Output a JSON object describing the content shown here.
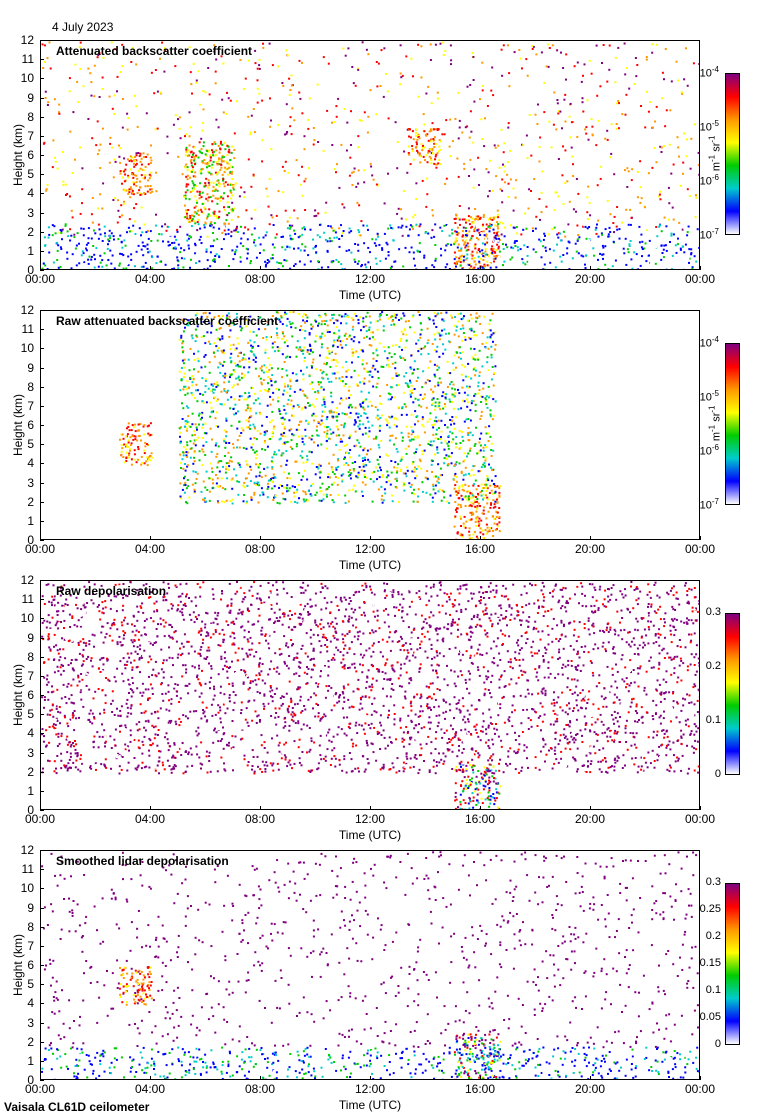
{
  "header": {
    "date": "4 July 2023"
  },
  "footer": {
    "instrument": "Vaisala CL61D ceilometer"
  },
  "colors": {
    "red": "#ff0000",
    "orange": "#ff9900",
    "yellow": "#ffff00",
    "green": "#00cc00",
    "cyan": "#00cccc",
    "blue": "#0000ff",
    "purple": "#800080",
    "white": "#ffffff"
  },
  "chart_data": [
    {
      "type": "heatmap",
      "title": "Attenuated backscatter coefficient",
      "xlabel": "Time (UTC)",
      "ylabel": "Height (km)",
      "xticks": [
        "00:00",
        "04:00",
        "08:00",
        "12:00",
        "16:00",
        "20:00",
        "00:00"
      ],
      "yticks": [
        "0",
        "1",
        "2",
        "3",
        "4",
        "5",
        "6",
        "7",
        "8",
        "9",
        "10",
        "11",
        "12"
      ],
      "xlim": [
        "00:00",
        "24:00"
      ],
      "ylim": [
        0,
        12
      ],
      "colorbar": {
        "scale": "log",
        "range": [
          1e-07,
          0.0001
        ],
        "ticks": [
          {
            "base": "10",
            "exp": "-4"
          },
          {
            "base": "10",
            "exp": "-5"
          },
          {
            "base": "10",
            "exp": "-6"
          },
          {
            "base": "10",
            "exp": "-7"
          }
        ],
        "unit": {
          "a": "m",
          "ea": "-1",
          "b": " sr",
          "eb": "-1"
        }
      },
      "features": [
        {
          "time_range": [
            "02:50",
            "04:00"
          ],
          "height_range": [
            4.0,
            6.2
          ],
          "level": "high"
        },
        {
          "time_range": [
            "05:10",
            "07:00"
          ],
          "height_range": [
            2.5,
            6.8
          ],
          "level": "medium"
        },
        {
          "time_range": [
            "13:20",
            "14:30"
          ],
          "height_range": [
            5.5,
            7.5
          ],
          "level": "high"
        },
        {
          "time_range": [
            "15:00",
            "16:40"
          ],
          "height_range": [
            0,
            3.0
          ],
          "level": "high"
        },
        {
          "time_range": [
            "00:00",
            "24:00"
          ],
          "height_range": [
            0,
            2.5
          ],
          "level": "low"
        }
      ]
    },
    {
      "type": "heatmap",
      "title": "Raw attenuated backscatter coefficient",
      "xlabel": "Time (UTC)",
      "ylabel": "Height (km)",
      "xticks": [
        "00:00",
        "04:00",
        "08:00",
        "12:00",
        "16:00",
        "20:00",
        "00:00"
      ],
      "yticks": [
        "0",
        "1",
        "2",
        "3",
        "4",
        "5",
        "6",
        "7",
        "8",
        "9",
        "10",
        "11",
        "12"
      ],
      "xlim": [
        "00:00",
        "24:00"
      ],
      "ylim": [
        0,
        12
      ],
      "colorbar": {
        "scale": "log",
        "range": [
          1e-07,
          0.0001
        ],
        "ticks": [
          {
            "base": "10",
            "exp": "-4"
          },
          {
            "base": "10",
            "exp": "-5"
          },
          {
            "base": "10",
            "exp": "-6"
          },
          {
            "base": "10",
            "exp": "-7"
          }
        ],
        "unit": {
          "a": "m",
          "ea": "-1",
          "b": " sr",
          "eb": "-1"
        }
      },
      "features": [
        {
          "time_range": [
            "02:50",
            "04:00"
          ],
          "height_range": [
            4.0,
            6.2
          ],
          "level": "high"
        },
        {
          "time_range": [
            "15:00",
            "16:40"
          ],
          "height_range": [
            0,
            3.0
          ],
          "level": "high"
        },
        {
          "time_range": [
            "05:00",
            "16:30"
          ],
          "height_range": [
            2.0,
            12.0
          ],
          "level": "noise"
        }
      ]
    },
    {
      "type": "heatmap",
      "title": "Raw depolarisation",
      "xlabel": "Time (UTC)",
      "ylabel": "Height (km)",
      "xticks": [
        "00:00",
        "04:00",
        "08:00",
        "12:00",
        "16:00",
        "20:00",
        "00:00"
      ],
      "yticks": [
        "0",
        "1",
        "2",
        "3",
        "4",
        "5",
        "6",
        "7",
        "8",
        "9",
        "10",
        "11",
        "12"
      ],
      "xlim": [
        "00:00",
        "24:00"
      ],
      "ylim": [
        0,
        12
      ],
      "colorbar": {
        "scale": "linear",
        "range": [
          0,
          0.3
        ],
        "ticks": [
          "0.3",
          "0.2",
          "0.1",
          "0"
        ]
      },
      "features": [
        {
          "time_range": [
            "15:00",
            "16:40"
          ],
          "height_range": [
            0,
            2.5
          ],
          "level": "mixed"
        },
        {
          "time_range": [
            "00:00",
            "24:00"
          ],
          "height_range": [
            2.0,
            12.0
          ],
          "level": "noise"
        }
      ]
    },
    {
      "type": "heatmap",
      "title": "Smoothed lidar depolarisation",
      "xlabel": "Time (UTC)",
      "ylabel": "Height (km)",
      "xticks": [
        "00:00",
        "04:00",
        "08:00",
        "12:00",
        "16:00",
        "20:00",
        "00:00"
      ],
      "yticks": [
        "0",
        "1",
        "2",
        "3",
        "4",
        "5",
        "6",
        "7",
        "8",
        "9",
        "10",
        "11",
        "12"
      ],
      "xlim": [
        "00:00",
        "24:00"
      ],
      "ylim": [
        0,
        12
      ],
      "colorbar": {
        "scale": "linear",
        "range": [
          0,
          0.3
        ],
        "ticks": [
          "0.3",
          "0.25",
          "0.2",
          "0.15",
          "0.1",
          "0.05",
          "0"
        ]
      },
      "features": [
        {
          "time_range": [
            "02:50",
            "04:00"
          ],
          "height_range": [
            4.0,
            6.0
          ],
          "level": "high"
        },
        {
          "time_range": [
            "15:00",
            "16:40"
          ],
          "height_range": [
            0,
            2.5
          ],
          "level": "mixed"
        },
        {
          "time_range": [
            "00:00",
            "24:00"
          ],
          "height_range": [
            0,
            1.8
          ],
          "level": "low"
        }
      ]
    }
  ]
}
